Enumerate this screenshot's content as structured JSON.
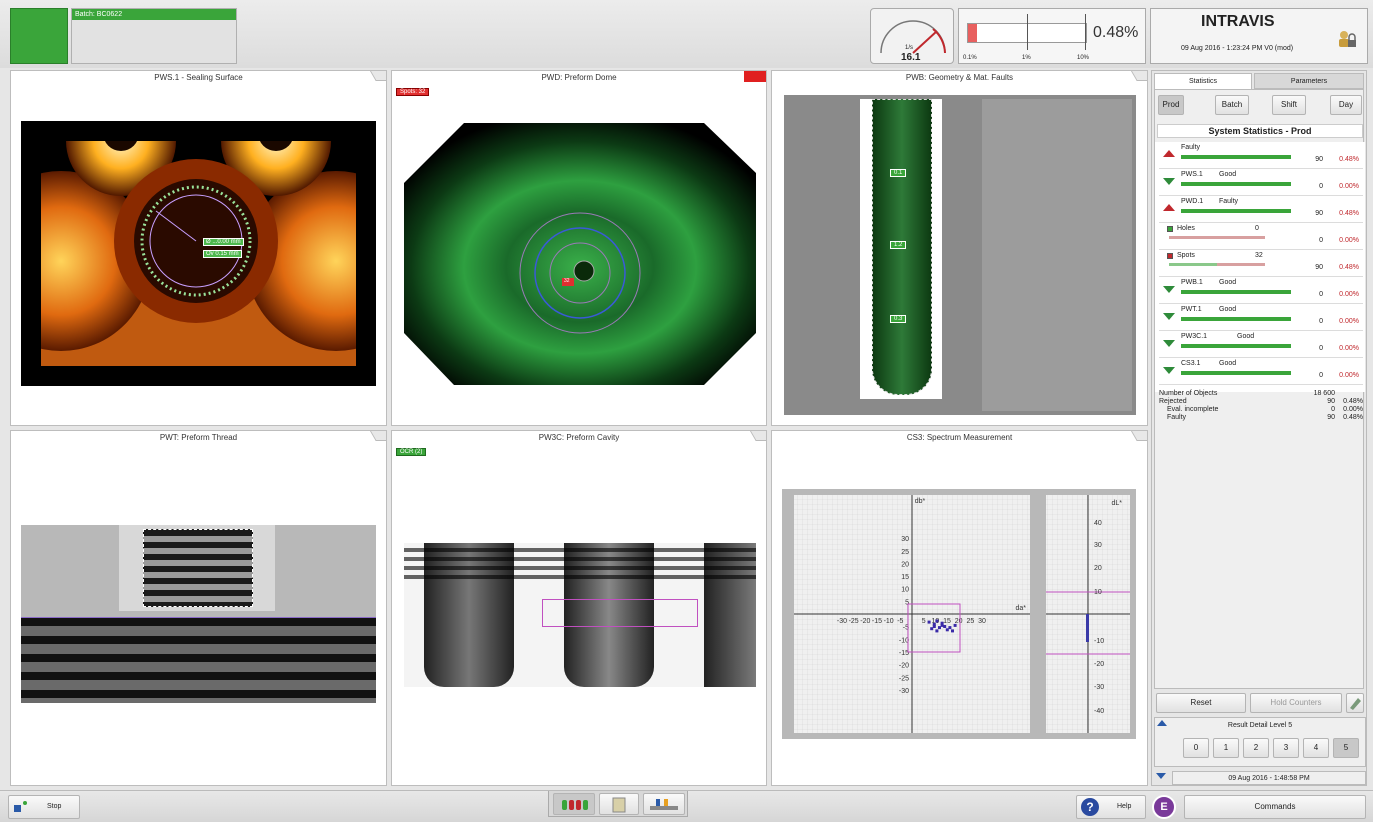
{
  "header": {
    "batch_label": "Batch: BC0622",
    "speed_unit": "1/s",
    "speed_value": "16.1",
    "reject_percent": "0.48%",
    "scale_labels": [
      "0.1%",
      "1%",
      "10%"
    ],
    "brand": "INTRAVIS",
    "datetime": "09 Aug 2016 - 1:23:24 PM  V0 (mod)",
    "status_color": "#3aa53a",
    "reject_fill_percent": 8
  },
  "panels": {
    "pws": {
      "title": "PWS.1 - Sealing Surface",
      "measure1": "Ø ...0.00 mm",
      "measure2": "Ov 0.15 mm"
    },
    "pwd": {
      "title": "PWD: Preform Dome",
      "tag": "Spots: 32",
      "marker": "32"
    },
    "pwb": {
      "title": "PWB: Geometry & Mat. Faults",
      "zone1": "0.1",
      "zone2": "1.2",
      "zone3": "0.3"
    },
    "pwt": {
      "title": "PWT: Preform Thread"
    },
    "pw3c": {
      "title": "PW3C: Preform Cavity",
      "tag": "OCR (2)"
    },
    "cs3": {
      "title": "CS3: Spectrum Measurement",
      "ylabel": "db*",
      "xlabel": "da*",
      "side_label": "dL*"
    }
  },
  "right": {
    "tabs": [
      "Statistics",
      "Parameters"
    ],
    "period_buttons": [
      "Prod",
      "Batch",
      "Shift",
      "Day"
    ],
    "section_title": "System Statistics - Prod",
    "rows": [
      {
        "name": "Faulty",
        "status": "",
        "count": "90",
        "pct": "0.48%",
        "dir": "up"
      },
      {
        "name": "PWS.1",
        "status": "Good",
        "count": "0",
        "pct": "0.00%",
        "dir": "down"
      },
      {
        "name": "PWD.1",
        "status": "Faulty",
        "count": "90",
        "pct": "0.48%",
        "dir": "up"
      },
      {
        "name": "PWB.1",
        "status": "Good",
        "count": "0",
        "pct": "0.00%",
        "dir": "down"
      },
      {
        "name": "PWT.1",
        "status": "Good",
        "count": "0",
        "pct": "0.00%",
        "dir": "down"
      },
      {
        "name": "PW3C.1",
        "status": "Good",
        "count": "0",
        "pct": "0.00%",
        "dir": "down"
      },
      {
        "name": "CS3.1",
        "status": "Good",
        "count": "0",
        "pct": "0.00%",
        "dir": "down"
      }
    ],
    "holes": {
      "name": "Holes",
      "value": "0",
      "count": "0",
      "pct": "0.00%"
    },
    "spots": {
      "name": "Spots",
      "value": "32",
      "count": "90",
      "pct": "0.48%"
    },
    "summary": [
      {
        "label": "Number of Objects",
        "count": "18 600",
        "pct": ""
      },
      {
        "label": "Rejected",
        "count": "90",
        "pct": "0.48%"
      },
      {
        "label": "Eval. incomplete",
        "count": "0",
        "pct": "0.00%"
      },
      {
        "label": "Faulty",
        "count": "90",
        "pct": "0.48%"
      }
    ],
    "reset_label": "Reset",
    "hold_label": "Hold Counters",
    "result_level_title": "Result Detail Level 5",
    "levels": [
      "0",
      "1",
      "2",
      "3",
      "4",
      "5"
    ],
    "footer_datetime": "09 Aug 2016 - 1:48:58 PM"
  },
  "bottom": {
    "stop_label": "Stop",
    "help_label": "Help",
    "commands_label": "Commands",
    "e_label": "E"
  },
  "cs3_axes": {
    "x_ticks": [
      "-30",
      "-25",
      "-20",
      "-15",
      "-10",
      "-5",
      "5",
      "10",
      "15",
      "20",
      "25",
      "30"
    ],
    "y_ticks": [
      "30",
      "25",
      "20",
      "15",
      "10",
      "5",
      "-5",
      "-10",
      "-15",
      "-20",
      "-25",
      "-30"
    ],
    "side_ticks": [
      "40",
      "30",
      "20",
      "10",
      "-10",
      "-20",
      "-30",
      "-40"
    ]
  }
}
